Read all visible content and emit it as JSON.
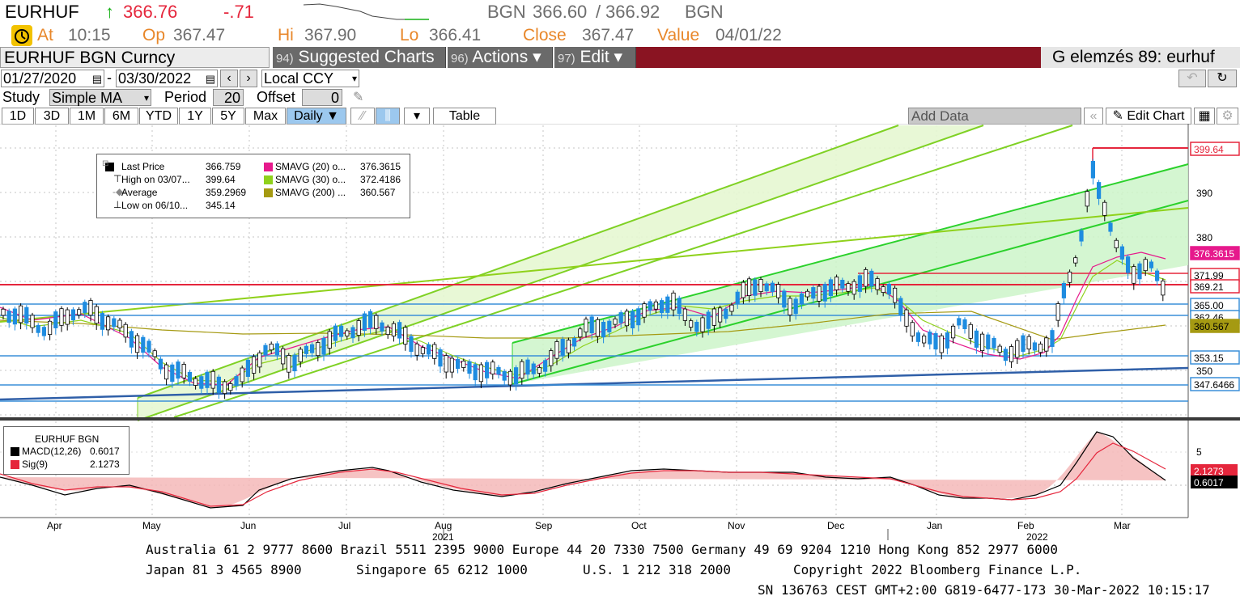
{
  "ticker": {
    "symbol": "EURHUF",
    "arrow": "↑",
    "last": "366.76",
    "change": "-.71",
    "source": "BGN",
    "bid": "366.60",
    "slash": "/",
    "ask": "366.92",
    "source2": "BGN"
  },
  "quote": {
    "at_label": "At",
    "at": "10:15",
    "op_label": "Op",
    "op": "367.47",
    "hi_label": "Hi",
    "hi": "367.90",
    "lo_label": "Lo",
    "lo": "366.41",
    "close_label": "Close",
    "close": "367.47",
    "value_label": "Value",
    "value": "04/01/22"
  },
  "toolbar": {
    "security": "EURHUF BGN Curncy",
    "suggested_num": "94)",
    "suggested": "Suggested Charts",
    "actions_num": "96)",
    "actions": "Actions ▾",
    "edit_num": "97)",
    "edit": "Edit ▾",
    "page": "G elemzés 89: eurhuf"
  },
  "range": {
    "start": "01/27/2020",
    "dash": "-",
    "end": "03/30/2022",
    "currency": "Local CCY"
  },
  "study": {
    "label": "Study",
    "type": "Simple MA",
    "period_label": "Period",
    "period": "20",
    "offset_label": "Offset",
    "offset": "0"
  },
  "tabs": [
    "1D",
    "3D",
    "1M",
    "6M",
    "YTD",
    "1Y",
    "5Y",
    "Max"
  ],
  "frequency": "Daily ▼",
  "table_label": "Table",
  "add_data": "Add Data",
  "edit_chart": "Edit Chart",
  "legend_main": {
    "rows": [
      {
        "label": "Last Price",
        "value": "366.759"
      },
      {
        "label": "High on 03/07...",
        "value": "399.64"
      },
      {
        "label": "Average",
        "value": "359.2969"
      },
      {
        "label": "Low on 06/10...",
        "value": "345.14"
      }
    ],
    "sma": [
      {
        "label": "SMAVG (20)  o...",
        "value": "376.3615",
        "color": "#e6198c"
      },
      {
        "label": "SMAVG (30)  o...",
        "value": "372.4186",
        "color": "#8fd11b"
      },
      {
        "label": "SMAVG (200)  ...",
        "value": "360.567",
        "color": "#a59a12"
      }
    ]
  },
  "legend_macd": {
    "title": "EURHUF BGN",
    "rows": [
      {
        "label": "MACD(12,26)",
        "value": "0.6017",
        "color": "#000000"
      },
      {
        "label": "Sig(9)",
        "value": "2.1273",
        "color": "#e5263c"
      }
    ]
  },
  "axis": {
    "right_ticks": [
      "390",
      "380",
      "350"
    ],
    "macd_ticks": [
      "5"
    ],
    "months": [
      "Apr",
      "May",
      "Jun",
      "Jul",
      "Aug",
      "Sep",
      "Oct",
      "Nov",
      "Dec",
      "Jan",
      "Feb",
      "Mar"
    ],
    "years": [
      "2021",
      "2022"
    ]
  },
  "price_labels": [
    {
      "text": "399.64",
      "bg": "#ffffff",
      "fg": "#e5263c",
      "border": "#e5263c"
    },
    {
      "text": "376.3615",
      "bg": "#e6198c",
      "fg": "#ffffff",
      "border": "#e6198c"
    },
    {
      "text": "371.99",
      "bg": "#ffffff",
      "fg": "#000000",
      "border": "#e5263c"
    },
    {
      "text": "369.21",
      "bg": "#ffffff",
      "fg": "#000000",
      "border": "#e5263c"
    },
    {
      "text": "365.00",
      "bg": "#ffffff",
      "fg": "#000000",
      "border": "#3a8fd8"
    },
    {
      "text": "362.46",
      "bg": "#ffffff",
      "fg": "#000000",
      "border": "#3a8fd8"
    },
    {
      "text": "360.567",
      "bg": "#a59a12",
      "fg": "#000000",
      "border": "#a59a12"
    },
    {
      "text": "353.15",
      "bg": "#ffffff",
      "fg": "#000000",
      "border": "#3a8fd8"
    },
    {
      "text": "347.6466",
      "bg": "#ffffff",
      "fg": "#000000",
      "border": "#3a8fd8"
    }
  ],
  "macd_labels": [
    {
      "text": "2.1273",
      "bg": "#e5263c",
      "fg": "#ffffff"
    },
    {
      "text": "0.6017",
      "bg": "#000000",
      "fg": "#ffffff"
    }
  ],
  "footer": {
    "line1": "Australia 61 2 9777 8600 Brazil 5511 2395 9000 Europe 44 20 7330 7500 Germany 49 69 9204 1210 Hong Kong 852 2977 6000",
    "line2a": "Japan 81 3 4565 8900",
    "line2b": "Singapore 65 6212 1000",
    "line2c": "U.S. 1 212 318 2000",
    "line2d": "Copyright 2022 Bloomberg Finance L.P.",
    "line3": "SN 136763 CEST GMT+2:00 G819-6477-173 30-Mar-2022 10:15:17"
  },
  "colors": {
    "accent_orange": "#e8872a",
    "down_red": "#e5263c",
    "up_green": "#17b117",
    "candle_blue": "#1e8ce0",
    "channel_green": "#7fd124",
    "hline_blue": "#3a8fd8",
    "hline_red": "#e5263c"
  }
}
